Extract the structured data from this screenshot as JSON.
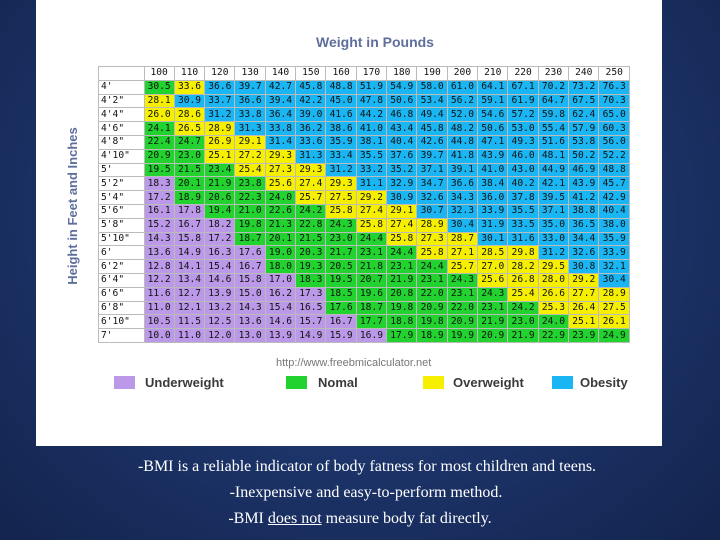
{
  "chart": {
    "title": "Weight in Pounds",
    "ylabel": "Height in Feet and Inches",
    "source": "http://www.freebmicalculator.net"
  },
  "legend": [
    {
      "label": "Underweight",
      "color": "#bb99e8"
    },
    {
      "label": "Nomal",
      "color": "#22d22e"
    },
    {
      "label": "Overweight",
      "color": "#f6ef00"
    },
    {
      "label": "Obesity",
      "color": "#1ab5f3"
    }
  ],
  "notes": {
    "line1": "-BMI is a reliable indicator of body fatness for most children and teens.",
    "line2": "-Inexpensive and easy-to-perform method.",
    "line3_before": "-BMI ",
    "line3_underlined": "does not",
    "line3_after": " measure body fat directly."
  },
  "chart_data": {
    "type": "table",
    "title": "Weight in Pounds",
    "xlabel": "Weight in Pounds",
    "ylabel": "Height in Feet and Inches",
    "columns": [
      "100",
      "110",
      "120",
      "130",
      "140",
      "150",
      "160",
      "170",
      "180",
      "190",
      "200",
      "210",
      "220",
      "230",
      "240",
      "250"
    ],
    "rows": [
      {
        "height": "4'",
        "values": [
          "30.5",
          "33.6",
          "36.6",
          "39.7",
          "42.7",
          "45.8",
          "48.8",
          "51.9",
          "54.9",
          "58.0",
          "61.0",
          "64.1",
          "67.1",
          "70.2",
          "73.2",
          "76.3"
        ],
        "cats": "NOBBBBBBBBBBBBBB"
      },
      {
        "height": "4'2\"",
        "values": [
          "28.1",
          "30.9",
          "33.7",
          "36.6",
          "39.4",
          "42.2",
          "45.0",
          "47.8",
          "50.6",
          "53.4",
          "56.2",
          "59.1",
          "61.9",
          "64.7",
          "67.5",
          "70.3"
        ],
        "cats": "OBBBBBBBBBBBBBBB"
      },
      {
        "height": "4'4\"",
        "values": [
          "26.0",
          "28.6",
          "31.2",
          "33.8",
          "36.4",
          "39.0",
          "41.6",
          "44.2",
          "46.8",
          "49.4",
          "52.0",
          "54.6",
          "57.2",
          "59.8",
          "62.4",
          "65.0"
        ],
        "cats": "OOBBBBBBBBBBBBBB"
      },
      {
        "height": "4'6\"",
        "values": [
          "24.1",
          "26.5",
          "28.9",
          "31.3",
          "33.8",
          "36.2",
          "38.6",
          "41.0",
          "43.4",
          "45.8",
          "48.2",
          "50.6",
          "53.0",
          "55.4",
          "57.9",
          "60.3"
        ],
        "cats": "NOOBBBBBBBBBBBBB"
      },
      {
        "height": "4'8\"",
        "values": [
          "22.4",
          "24.7",
          "26.9",
          "29.1",
          "31.4",
          "33.6",
          "35.9",
          "38.1",
          "40.4",
          "42.6",
          "44.8",
          "47.1",
          "49.3",
          "51.6",
          "53.8",
          "56.0"
        ],
        "cats": "NNOOBBBBBBBBBBBB"
      },
      {
        "height": "4'10\"",
        "values": [
          "20.9",
          "23.0",
          "25.1",
          "27.2",
          "29.3",
          "31.3",
          "33.4",
          "35.5",
          "37.6",
          "39.7",
          "41.8",
          "43.9",
          "46.0",
          "48.1",
          "50.2",
          "52.2"
        ],
        "cats": "NNOOOBBBBBBBBBBB"
      },
      {
        "height": "5'",
        "values": [
          "19.5",
          "21.5",
          "23.4",
          "25.4",
          "27.3",
          "29.3",
          "31.2",
          "33.2",
          "35.2",
          "37.1",
          "39.1",
          "41.0",
          "43.0",
          "44.9",
          "46.9",
          "48.8"
        ],
        "cats": "NNNOOOBBBBBBBBBB"
      },
      {
        "height": "5'2\"",
        "values": [
          "18.3",
          "20.1",
          "21.9",
          "23.8",
          "25.6",
          "27.4",
          "29.3",
          "31.1",
          "32.9",
          "34.7",
          "36.6",
          "38.4",
          "40.2",
          "42.1",
          "43.9",
          "45.7"
        ],
        "cats": "UNNNOOOBBBBBBBBB"
      },
      {
        "height": "5'4\"",
        "values": [
          "17.2",
          "18.9",
          "20.6",
          "22.3",
          "24.0",
          "25.7",
          "27.5",
          "29.2",
          "30.9",
          "32.6",
          "34.3",
          "36.0",
          "37.8",
          "39.5",
          "41.2",
          "42.9"
        ],
        "cats": "UNNNNOOOBBBBBBBB"
      },
      {
        "height": "5'6\"",
        "values": [
          "16.1",
          "17.8",
          "19.4",
          "21.0",
          "22.6",
          "24.2",
          "25.8",
          "27.4",
          "29.1",
          "30.7",
          "32.3",
          "33.9",
          "35.5",
          "37.1",
          "38.8",
          "40.4"
        ],
        "cats": "UUNNNNOOOBBBBBBB"
      },
      {
        "height": "5'8\"",
        "values": [
          "15.2",
          "16.7",
          "18.2",
          "19.8",
          "21.3",
          "22.8",
          "24.3",
          "25.8",
          "27.4",
          "28.9",
          "30.4",
          "31.9",
          "33.5",
          "35.0",
          "36.5",
          "38.0"
        ],
        "cats": "UUUNNNNOOOBBBBBB"
      },
      {
        "height": "5'10\"",
        "values": [
          "14.3",
          "15.8",
          "17.2",
          "18.7",
          "20.1",
          "21.5",
          "23.0",
          "24.4",
          "25.8",
          "27.3",
          "28.7",
          "30.1",
          "31.6",
          "33.0",
          "34.4",
          "35.9"
        ],
        "cats": "UUUNNNNNOOOBBBBB"
      },
      {
        "height": "6'",
        "values": [
          "13.6",
          "14.9",
          "16.3",
          "17.6",
          "19.0",
          "20.3",
          "21.7",
          "23.1",
          "24.4",
          "25.8",
          "27.1",
          "28.5",
          "29.8",
          "31.2",
          "32.6",
          "33.9"
        ],
        "cats": "UUUUNNNNNOOOOBBB"
      },
      {
        "height": "6'2\"",
        "values": [
          "12.8",
          "14.1",
          "15.4",
          "16.7",
          "18.0",
          "19.3",
          "20.5",
          "21.8",
          "23.1",
          "24.4",
          "25.7",
          "27.0",
          "28.2",
          "29.5",
          "30.8",
          "32.1"
        ],
        "cats": "UUUUNNNNNNOOOOBB"
      },
      {
        "height": "6'4\"",
        "values": [
          "12.2",
          "13.4",
          "14.6",
          "15.8",
          "17.0",
          "18.3",
          "19.5",
          "20.7",
          "21.9",
          "23.1",
          "24.3",
          "25.6",
          "26.8",
          "28.0",
          "29.2",
          "30.4"
        ],
        "cats": "UUUUUNNNNNNOOOOB"
      },
      {
        "height": "6'6\"",
        "values": [
          "11.6",
          "12.7",
          "13.9",
          "15.0",
          "16.2",
          "17.3",
          "18.5",
          "19.6",
          "20.8",
          "22.0",
          "23.1",
          "24.3",
          "25.4",
          "26.6",
          "27.7",
          "28.9"
        ],
        "cats": "UUUUUUNNNNNNOOOO"
      },
      {
        "height": "6'8\"",
        "values": [
          "11.0",
          "12.1",
          "13.2",
          "14.3",
          "15.4",
          "16.5",
          "17.6",
          "18.7",
          "19.8",
          "20.9",
          "22.0",
          "23.1",
          "24.2",
          "25.3",
          "26.4",
          "27.5"
        ],
        "cats": "UUUUUUNNNNNNNOOO"
      },
      {
        "height": "6'10\"",
        "values": [
          "10.5",
          "11.5",
          "12.5",
          "13.6",
          "14.6",
          "15.7",
          "16.7",
          "17.7",
          "18.8",
          "19.8",
          "20.9",
          "21.9",
          "23.0",
          "24.0",
          "25.1",
          "26.1"
        ],
        "cats": "UUUUUUUNNNNNNNOO"
      },
      {
        "height": "7'",
        "values": [
          "10.0",
          "11.0",
          "12.0",
          "13.0",
          "13.9",
          "14.9",
          "15.9",
          "16.9",
          "17.9",
          "18.9",
          "19.9",
          "20.9",
          "21.9",
          "22.9",
          "23.9",
          "24.9"
        ],
        "cats": "UUUUUUUUNNNNNNNN"
      }
    ]
  }
}
